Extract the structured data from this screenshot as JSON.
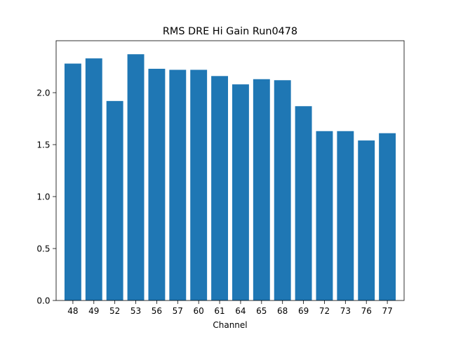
{
  "chart_data": {
    "type": "bar",
    "title": "RMS DRE Hi Gain Run0478",
    "xlabel": "Channel",
    "ylabel": "",
    "categories": [
      "48",
      "49",
      "52",
      "53",
      "56",
      "57",
      "60",
      "61",
      "64",
      "65",
      "68",
      "69",
      "72",
      "73",
      "76",
      "77"
    ],
    "values": [
      2.28,
      2.33,
      1.92,
      2.37,
      2.23,
      2.22,
      2.22,
      2.16,
      2.08,
      2.13,
      2.12,
      1.87,
      1.63,
      1.63,
      1.54,
      1.61
    ],
    "ylim": [
      0,
      2.5
    ],
    "yticks": [
      0.0,
      0.5,
      1.0,
      1.5,
      2.0
    ],
    "ytick_labels": [
      "0.0",
      "0.5",
      "1.0",
      "1.5",
      "2.0"
    ],
    "bar_color": "#1f77b4",
    "grid": false,
    "legend": "none"
  }
}
